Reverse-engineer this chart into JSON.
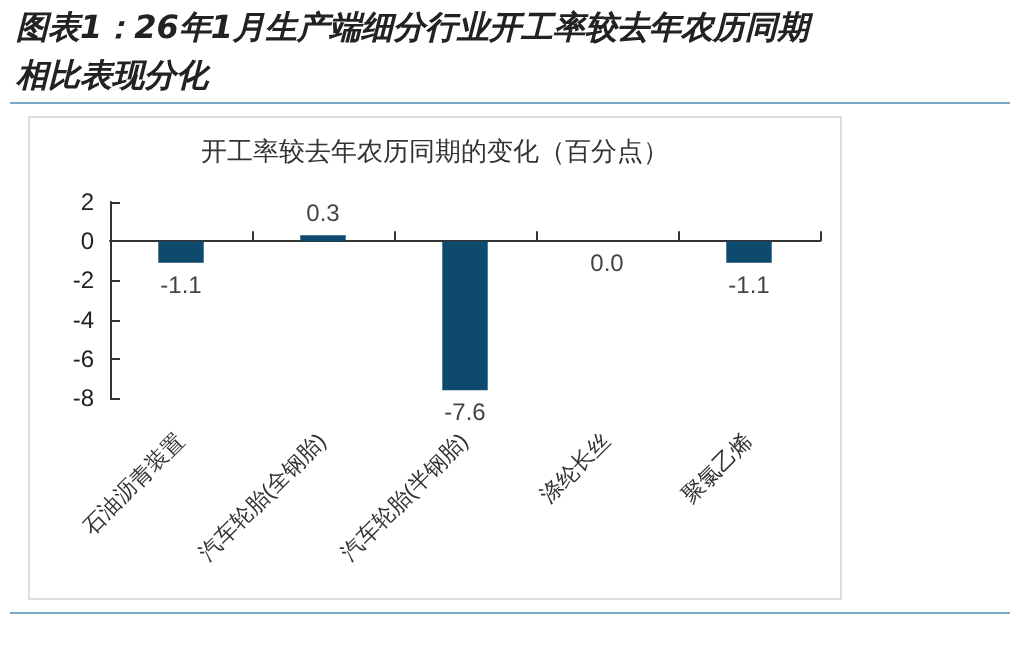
{
  "chart_data": {
    "type": "bar",
    "title": "图表1：26年1月生产端细分行业开工率较去年农历同期相比表现分化",
    "subtitle": "开工率较去年农历同期的变化（百分点）",
    "categories": [
      "石油沥青装置",
      "汽车轮胎(全钢胎)",
      "汽车轮胎(半钢胎)",
      "涤纶长丝",
      "聚氯乙烯"
    ],
    "values": [
      -1.1,
      0.3,
      -7.6,
      0.0,
      -1.1
    ],
    "value_labels": [
      "-1.1",
      "0.3",
      "-7.6",
      "0.0",
      "-1.1"
    ],
    "color": "#0d4a6e",
    "ylim": [
      -8,
      2
    ],
    "yticks": [
      -8,
      -6,
      -4,
      -2,
      0,
      2
    ]
  }
}
